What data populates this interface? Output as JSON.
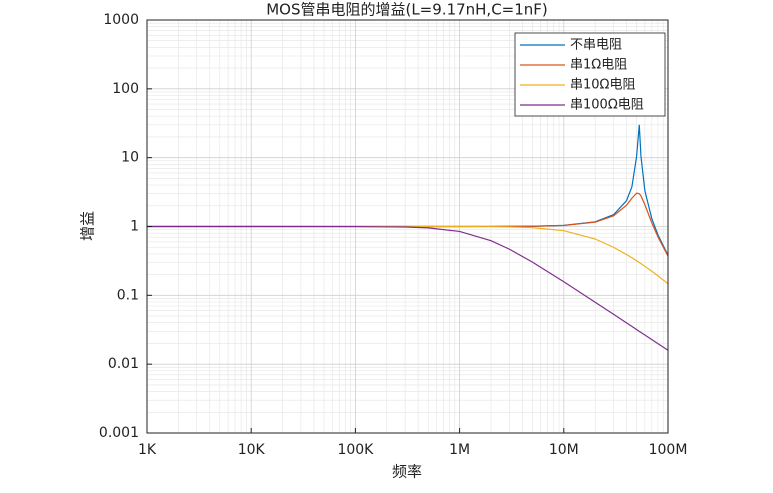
{
  "chart_data": {
    "type": "line",
    "title": "MOS管串电阻的增益(L=9.17nH,C=1nF)",
    "x_label": "频率",
    "y_label": "增益",
    "x": [
      1000,
      10000,
      100000,
      300000,
      500000,
      1000000,
      2000000,
      3000000,
      5000000,
      10000000,
      20000000,
      30000000,
      40000000,
      45000000,
      50000000,
      53000000,
      55000000,
      60000000,
      70000000,
      80000000,
      100000000
    ],
    "series": [
      {
        "name": "不串电阻",
        "color": "#0072BD",
        "values": [
          1,
          1,
          1,
          1,
          1,
          1.0004,
          1.0014,
          1.0033,
          1.0091,
          1.0376,
          1.169,
          1.483,
          2.376,
          3.745,
          10.5,
          30,
          10.5,
          3.3,
          1.292,
          0.7595,
          0.3817
        ]
      },
      {
        "name": "串1Ω电阻",
        "color": "#D95319",
        "values": [
          1,
          1,
          1,
          1,
          1,
          1.0004,
          1.0014,
          1.0033,
          1.0086,
          1.0354,
          1.157,
          1.428,
          2.04,
          2.572,
          3.047,
          3.0,
          2.79,
          2.067,
          1.124,
          0.7095,
          0.371
        ]
      },
      {
        "name": "串10Ω电阻",
        "color": "#EDB120",
        "values": [
          1,
          1,
          1,
          0.9998,
          0.9995,
          0.9984,
          0.994,
          0.9858,
          0.962,
          0.869,
          0.658,
          0.4995,
          0.392,
          0.352,
          0.318,
          0.3003,
          0.289,
          0.264,
          0.224,
          0.1925,
          0.1469
        ]
      },
      {
        "name": "串100Ω电阻",
        "color": "#7E2F8E",
        "values": [
          1,
          1,
          0.998,
          0.983,
          0.954,
          0.847,
          0.623,
          0.469,
          0.3036,
          0.1573,
          0.0794,
          0.053,
          0.0398,
          0.0354,
          0.0318,
          0.03,
          0.0289,
          0.0265,
          0.0227,
          0.0199,
          0.0159
        ]
      }
    ],
    "x_scale": "log",
    "y_scale": "log",
    "xlim": [
      1000,
      100000000
    ],
    "xticks": [
      {
        "value": 1000,
        "label": "1K"
      },
      {
        "value": 10000,
        "label": "10K"
      },
      {
        "value": 100000,
        "label": "100K"
      },
      {
        "value": 1000000,
        "label": "1M"
      },
      {
        "value": 10000000,
        "label": "10M"
      },
      {
        "value": 100000000,
        "label": "100M"
      }
    ],
    "ylim": [
      0.001,
      1000
    ],
    "yticks": [
      0.001,
      0.01,
      0.1,
      1,
      10,
      100,
      1000
    ],
    "grid": true,
    "minor_grid": true,
    "legend": "upper right"
  }
}
